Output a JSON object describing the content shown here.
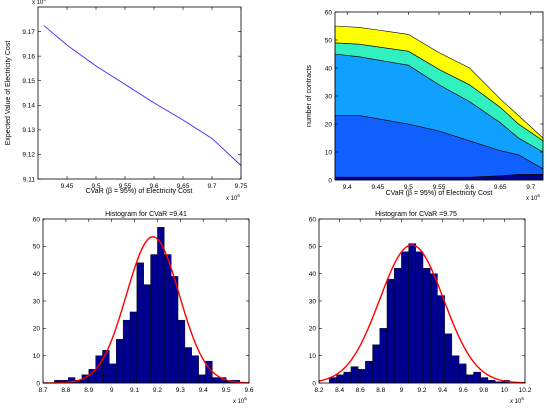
{
  "chart_data": [
    {
      "type": "line",
      "xlabel": "CVaR (β = 95%) of Electricity Cost",
      "ylabel": "Expected Value of Electricity Cost",
      "x_multiplier": "x 10",
      "x_exponent": "6",
      "y_multiplier": "x 10",
      "y_exponent": "6",
      "xlim": [
        9.4,
        9.75
      ],
      "ylim": [
        9.11,
        9.18
      ],
      "xticks": [
        "9.45",
        "9.5",
        "9.55",
        "9.6",
        "9.65",
        "9.7",
        "9.75"
      ],
      "yticks": [
        "9.11",
        "9.12",
        "9.13",
        "9.14",
        "9.15",
        "9.16",
        "9.17"
      ],
      "line_color": "#3030ff",
      "x": [
        9.41,
        9.45,
        9.5,
        9.55,
        9.6,
        9.65,
        9.7,
        9.75
      ],
      "y": [
        9.1725,
        9.1645,
        9.156,
        9.1485,
        9.141,
        9.134,
        9.1265,
        9.1155
      ]
    },
    {
      "type": "area",
      "xlabel": "CVaR (β = 95%) of Electricity Cost",
      "ylabel": "number of contracts",
      "x_multiplier": "x 10",
      "x_exponent": "6",
      "xlim": [
        9.38,
        9.72
      ],
      "ylim": [
        0,
        60
      ],
      "xticks": [
        "9.4",
        "9.45",
        "9.5",
        "9.55",
        "9.6",
        "9.65",
        "9.7"
      ],
      "yticks": [
        "0",
        "10",
        "20",
        "30",
        "40",
        "50",
        "60"
      ],
      "x": [
        9.38,
        9.42,
        9.5,
        9.55,
        9.6,
        9.65,
        9.68,
        9.72
      ],
      "series": [
        {
          "color": "#00008f",
          "values": [
            1,
            1,
            1,
            1,
            1,
            1.5,
            2,
            2
          ]
        },
        {
          "color": "#1060ff",
          "values": [
            22,
            22,
            19,
            16.5,
            13,
            9,
            7,
            2
          ]
        },
        {
          "color": "#10a0ff",
          "values": [
            22,
            21,
            21,
            16.5,
            14,
            10,
            6,
            6
          ]
        },
        {
          "color": "#30f0c0",
          "values": [
            4,
            4.5,
            5,
            5.5,
            6,
            5.5,
            5,
            4
          ]
        },
        {
          "color": "#ffff00",
          "values": [
            6,
            6,
            6,
            6,
            6,
            3,
            3,
            1
          ]
        }
      ]
    },
    {
      "type": "bar",
      "title": "Histogram for CVaR =9.41",
      "x_multiplier": "x 10",
      "x_exponent": "6",
      "xlim": [
        8.7,
        9.6
      ],
      "ylim": [
        0,
        60
      ],
      "xticks": [
        "8.7",
        "8.8",
        "8.9",
        "9",
        "9.1",
        "9.2",
        "9.3",
        "9.4",
        "9.5",
        "9.6"
      ],
      "yticks": [
        "0",
        "10",
        "20",
        "30",
        "40",
        "50",
        "60"
      ],
      "bin_width": 0.03,
      "bin_centers": [
        8.765,
        8.795,
        8.825,
        8.855,
        8.885,
        8.915,
        8.945,
        8.975,
        9.005,
        9.035,
        9.065,
        9.095,
        9.125,
        9.155,
        9.185,
        9.215,
        9.245,
        9.275,
        9.305,
        9.335,
        9.365,
        9.395,
        9.425,
        9.455,
        9.485,
        9.515,
        9.545
      ],
      "values": [
        1,
        1,
        2,
        1,
        3,
        5,
        10,
        12,
        7,
        16,
        23,
        26,
        44,
        36,
        47,
        57,
        47,
        39,
        23,
        13,
        10,
        3,
        8,
        2,
        2,
        1,
        1
      ],
      "bar_color": "#00008f",
      "fit": {
        "mean": 9.18,
        "sd": 0.115,
        "peak": 53.5,
        "color": "#ff0000"
      }
    },
    {
      "type": "bar",
      "title": "Histogram for CVaR =9.75",
      "x_multiplier": "x 10",
      "x_exponent": "6",
      "xlim": [
        8.2,
        10.2
      ],
      "ylim": [
        0,
        60
      ],
      "xticks": [
        "8.2",
        "8.4",
        "8.6",
        "8.8",
        "9",
        "9.2",
        "9.4",
        "9.6",
        "9.8",
        "10",
        "10.2"
      ],
      "yticks": [
        "0",
        "10",
        "20",
        "30",
        "40",
        "50",
        "60"
      ],
      "bin_width": 0.07,
      "bin_centers": [
        8.335,
        8.405,
        8.475,
        8.545,
        8.615,
        8.685,
        8.755,
        8.825,
        8.895,
        8.965,
        9.035,
        9.105,
        9.175,
        9.245,
        9.315,
        9.385,
        9.455,
        9.525,
        9.595,
        9.665,
        9.735,
        9.805,
        9.875,
        9.945,
        10.015
      ],
      "values": [
        2,
        3,
        4,
        6,
        5,
        8,
        14,
        20,
        38,
        42,
        48,
        51,
        48,
        42,
        40,
        32,
        18,
        10,
        7,
        3,
        4,
        2,
        1,
        0.5,
        1
      ],
      "bar_color": "#00008f",
      "fit": {
        "mean": 9.1,
        "sd": 0.31,
        "peak": 50.5,
        "color": "#ff0000"
      }
    }
  ]
}
